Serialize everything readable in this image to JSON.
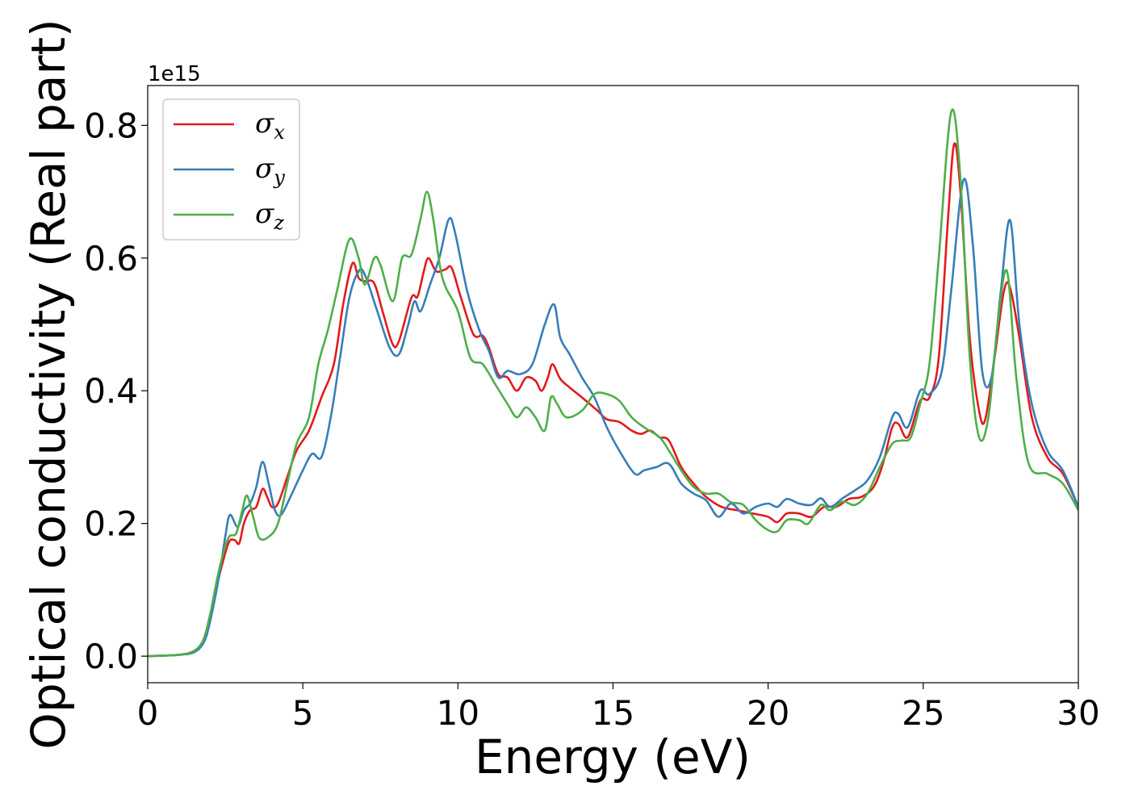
{
  "chart_data": {
    "type": "line",
    "title": "",
    "xlabel": "Energy (eV)",
    "ylabel": "Optical conductivity (Real part)",
    "y_offset_text": "1e15",
    "xlim": [
      0,
      30
    ],
    "ylim": [
      -0.04,
      0.86
    ],
    "x_ticks": [
      0,
      5,
      10,
      15,
      20,
      25,
      30
    ],
    "x_tick_labels": [
      "0",
      "5",
      "10",
      "15",
      "20",
      "25",
      "30"
    ],
    "y_ticks": [
      0.0,
      0.2,
      0.4,
      0.6,
      0.8
    ],
    "y_tick_labels": [
      "0.0",
      "0.2",
      "0.4",
      "0.6",
      "0.8"
    ],
    "grid": false,
    "legend_position": "top-left",
    "series": [
      {
        "name": "σ",
        "subscript": "x",
        "color": "#e41a1c",
        "points": [
          [
            0,
            0
          ],
          [
            1,
            0.002
          ],
          [
            1.5,
            0.008
          ],
          [
            1.8,
            0.025
          ],
          [
            2.0,
            0.06
          ],
          [
            2.3,
            0.12
          ],
          [
            2.6,
            0.17
          ],
          [
            2.8,
            0.175
          ],
          [
            2.95,
            0.17
          ],
          [
            3.1,
            0.2
          ],
          [
            3.3,
            0.22
          ],
          [
            3.5,
            0.225
          ],
          [
            3.7,
            0.252
          ],
          [
            3.85,
            0.24
          ],
          [
            4.0,
            0.225
          ],
          [
            4.2,
            0.23
          ],
          [
            4.5,
            0.27
          ],
          [
            4.8,
            0.31
          ],
          [
            5.2,
            0.34
          ],
          [
            5.6,
            0.39
          ],
          [
            6.0,
            0.44
          ],
          [
            6.3,
            0.53
          ],
          [
            6.6,
            0.592
          ],
          [
            6.8,
            0.57
          ],
          [
            7.0,
            0.565
          ],
          [
            7.3,
            0.562
          ],
          [
            7.6,
            0.515
          ],
          [
            7.9,
            0.47
          ],
          [
            8.1,
            0.475
          ],
          [
            8.5,
            0.54
          ],
          [
            8.7,
            0.542
          ],
          [
            8.9,
            0.58
          ],
          [
            9.05,
            0.6
          ],
          [
            9.3,
            0.58
          ],
          [
            9.6,
            0.583
          ],
          [
            9.8,
            0.585
          ],
          [
            10.1,
            0.54
          ],
          [
            10.5,
            0.485
          ],
          [
            10.8,
            0.483
          ],
          [
            11.0,
            0.465
          ],
          [
            11.3,
            0.425
          ],
          [
            11.6,
            0.42
          ],
          [
            11.9,
            0.4
          ],
          [
            12.2,
            0.42
          ],
          [
            12.5,
            0.415
          ],
          [
            12.7,
            0.4
          ],
          [
            12.9,
            0.42
          ],
          [
            13.05,
            0.44
          ],
          [
            13.3,
            0.418
          ],
          [
            13.6,
            0.405
          ],
          [
            14.0,
            0.39
          ],
          [
            14.5,
            0.37
          ],
          [
            14.8,
            0.357
          ],
          [
            15.2,
            0.353
          ],
          [
            15.6,
            0.34
          ],
          [
            15.9,
            0.335
          ],
          [
            16.2,
            0.34
          ],
          [
            16.5,
            0.33
          ],
          [
            16.8,
            0.325
          ],
          [
            17.2,
            0.285
          ],
          [
            17.6,
            0.26
          ],
          [
            18.0,
            0.24
          ],
          [
            18.5,
            0.225
          ],
          [
            19.0,
            0.22
          ],
          [
            19.5,
            0.215
          ],
          [
            20.0,
            0.21
          ],
          [
            20.3,
            0.202
          ],
          [
            20.6,
            0.215
          ],
          [
            21.0,
            0.215
          ],
          [
            21.4,
            0.21
          ],
          [
            21.8,
            0.225
          ],
          [
            22.2,
            0.225
          ],
          [
            22.6,
            0.237
          ],
          [
            23.0,
            0.24
          ],
          [
            23.4,
            0.255
          ],
          [
            23.7,
            0.29
          ],
          [
            24.0,
            0.345
          ],
          [
            24.2,
            0.35
          ],
          [
            24.5,
            0.33
          ],
          [
            24.9,
            0.385
          ],
          [
            25.2,
            0.39
          ],
          [
            25.5,
            0.45
          ],
          [
            25.8,
            0.66
          ],
          [
            26.0,
            0.772
          ],
          [
            26.2,
            0.7
          ],
          [
            26.5,
            0.48
          ],
          [
            26.8,
            0.37
          ],
          [
            27.0,
            0.357
          ],
          [
            27.3,
            0.45
          ],
          [
            27.6,
            0.55
          ],
          [
            27.8,
            0.555
          ],
          [
            28.1,
            0.48
          ],
          [
            28.5,
            0.36
          ],
          [
            29.0,
            0.3
          ],
          [
            29.5,
            0.275
          ],
          [
            30,
            0.225
          ]
        ]
      },
      {
        "name": "σ",
        "subscript": "y",
        "color": "#377eb8",
        "points": [
          [
            0,
            0
          ],
          [
            1,
            0.002
          ],
          [
            1.5,
            0.006
          ],
          [
            1.8,
            0.02
          ],
          [
            2.0,
            0.05
          ],
          [
            2.3,
            0.12
          ],
          [
            2.5,
            0.18
          ],
          [
            2.65,
            0.213
          ],
          [
            2.9,
            0.195
          ],
          [
            3.1,
            0.22
          ],
          [
            3.3,
            0.23
          ],
          [
            3.5,
            0.255
          ],
          [
            3.7,
            0.293
          ],
          [
            3.9,
            0.26
          ],
          [
            4.1,
            0.22
          ],
          [
            4.3,
            0.213
          ],
          [
            4.6,
            0.24
          ],
          [
            5.0,
            0.28
          ],
          [
            5.3,
            0.305
          ],
          [
            5.6,
            0.3
          ],
          [
            5.9,
            0.36
          ],
          [
            6.2,
            0.45
          ],
          [
            6.5,
            0.54
          ],
          [
            6.8,
            0.58
          ],
          [
            7.0,
            0.575
          ],
          [
            7.4,
            0.52
          ],
          [
            7.8,
            0.465
          ],
          [
            8.1,
            0.455
          ],
          [
            8.4,
            0.5
          ],
          [
            8.6,
            0.535
          ],
          [
            8.8,
            0.52
          ],
          [
            9.1,
            0.56
          ],
          [
            9.4,
            0.6
          ],
          [
            9.7,
            0.658
          ],
          [
            9.9,
            0.64
          ],
          [
            10.3,
            0.55
          ],
          [
            10.7,
            0.49
          ],
          [
            11.0,
            0.46
          ],
          [
            11.3,
            0.42
          ],
          [
            11.6,
            0.43
          ],
          [
            12.0,
            0.425
          ],
          [
            12.4,
            0.44
          ],
          [
            12.8,
            0.5
          ],
          [
            13.1,
            0.53
          ],
          [
            13.3,
            0.48
          ],
          [
            13.6,
            0.455
          ],
          [
            14.0,
            0.42
          ],
          [
            14.4,
            0.39
          ],
          [
            14.8,
            0.345
          ],
          [
            15.2,
            0.31
          ],
          [
            15.7,
            0.275
          ],
          [
            16.0,
            0.28
          ],
          [
            16.4,
            0.285
          ],
          [
            16.8,
            0.29
          ],
          [
            17.2,
            0.26
          ],
          [
            17.6,
            0.245
          ],
          [
            18.0,
            0.235
          ],
          [
            18.4,
            0.21
          ],
          [
            18.8,
            0.23
          ],
          [
            19.2,
            0.215
          ],
          [
            19.6,
            0.225
          ],
          [
            20.0,
            0.23
          ],
          [
            20.3,
            0.225
          ],
          [
            20.6,
            0.237
          ],
          [
            21.0,
            0.23
          ],
          [
            21.4,
            0.228
          ],
          [
            21.7,
            0.238
          ],
          [
            22.0,
            0.225
          ],
          [
            22.4,
            0.238
          ],
          [
            22.8,
            0.25
          ],
          [
            23.2,
            0.265
          ],
          [
            23.6,
            0.3
          ],
          [
            24.0,
            0.36
          ],
          [
            24.2,
            0.365
          ],
          [
            24.5,
            0.345
          ],
          [
            24.9,
            0.4
          ],
          [
            25.2,
            0.395
          ],
          [
            25.6,
            0.43
          ],
          [
            25.9,
            0.55
          ],
          [
            26.3,
            0.718
          ],
          [
            26.6,
            0.62
          ],
          [
            26.9,
            0.43
          ],
          [
            27.2,
            0.42
          ],
          [
            27.5,
            0.55
          ],
          [
            27.8,
            0.657
          ],
          [
            28.1,
            0.5
          ],
          [
            28.5,
            0.38
          ],
          [
            29.0,
            0.31
          ],
          [
            29.5,
            0.28
          ],
          [
            30,
            0.225
          ]
        ]
      },
      {
        "name": "σ",
        "subscript": "z",
        "color": "#4daf4a",
        "points": [
          [
            0,
            0
          ],
          [
            1,
            0.002
          ],
          [
            1.5,
            0.008
          ],
          [
            1.8,
            0.025
          ],
          [
            2.0,
            0.06
          ],
          [
            2.3,
            0.13
          ],
          [
            2.6,
            0.178
          ],
          [
            2.85,
            0.185
          ],
          [
            3.05,
            0.22
          ],
          [
            3.2,
            0.242
          ],
          [
            3.4,
            0.21
          ],
          [
            3.6,
            0.178
          ],
          [
            3.9,
            0.18
          ],
          [
            4.2,
            0.2
          ],
          [
            4.5,
            0.26
          ],
          [
            4.8,
            0.32
          ],
          [
            5.2,
            0.36
          ],
          [
            5.5,
            0.44
          ],
          [
            5.8,
            0.49
          ],
          [
            6.1,
            0.55
          ],
          [
            6.5,
            0.628
          ],
          [
            6.8,
            0.6
          ],
          [
            7.0,
            0.56
          ],
          [
            7.3,
            0.6
          ],
          [
            7.5,
            0.59
          ],
          [
            7.9,
            0.535
          ],
          [
            8.2,
            0.6
          ],
          [
            8.5,
            0.605
          ],
          [
            8.8,
            0.66
          ],
          [
            9.0,
            0.7
          ],
          [
            9.2,
            0.66
          ],
          [
            9.5,
            0.57
          ],
          [
            10.0,
            0.52
          ],
          [
            10.4,
            0.45
          ],
          [
            10.8,
            0.44
          ],
          [
            11.2,
            0.41
          ],
          [
            11.6,
            0.38
          ],
          [
            11.9,
            0.36
          ],
          [
            12.2,
            0.375
          ],
          [
            12.5,
            0.36
          ],
          [
            12.8,
            0.34
          ],
          [
            13.0,
            0.39
          ],
          [
            13.2,
            0.38
          ],
          [
            13.5,
            0.36
          ],
          [
            14.0,
            0.37
          ],
          [
            14.4,
            0.395
          ],
          [
            14.8,
            0.395
          ],
          [
            15.2,
            0.385
          ],
          [
            15.6,
            0.36
          ],
          [
            16.0,
            0.345
          ],
          [
            16.5,
            0.33
          ],
          [
            16.8,
            0.31
          ],
          [
            17.2,
            0.28
          ],
          [
            17.6,
            0.255
          ],
          [
            18.0,
            0.245
          ],
          [
            18.4,
            0.245
          ],
          [
            18.8,
            0.232
          ],
          [
            19.2,
            0.228
          ],
          [
            19.6,
            0.205
          ],
          [
            20.0,
            0.19
          ],
          [
            20.3,
            0.188
          ],
          [
            20.6,
            0.205
          ],
          [
            21.0,
            0.205
          ],
          [
            21.3,
            0.2
          ],
          [
            21.7,
            0.228
          ],
          [
            22.0,
            0.22
          ],
          [
            22.4,
            0.233
          ],
          [
            22.8,
            0.228
          ],
          [
            23.2,
            0.245
          ],
          [
            23.6,
            0.285
          ],
          [
            24.0,
            0.32
          ],
          [
            24.3,
            0.325
          ],
          [
            24.6,
            0.33
          ],
          [
            24.9,
            0.38
          ],
          [
            25.2,
            0.44
          ],
          [
            25.5,
            0.6
          ],
          [
            25.9,
            0.82
          ],
          [
            26.2,
            0.72
          ],
          [
            26.5,
            0.45
          ],
          [
            26.8,
            0.33
          ],
          [
            27.1,
            0.36
          ],
          [
            27.4,
            0.5
          ],
          [
            27.7,
            0.58
          ],
          [
            28.0,
            0.42
          ],
          [
            28.4,
            0.29
          ],
          [
            29.0,
            0.275
          ],
          [
            29.5,
            0.26
          ],
          [
            30,
            0.22
          ]
        ]
      }
    ]
  }
}
